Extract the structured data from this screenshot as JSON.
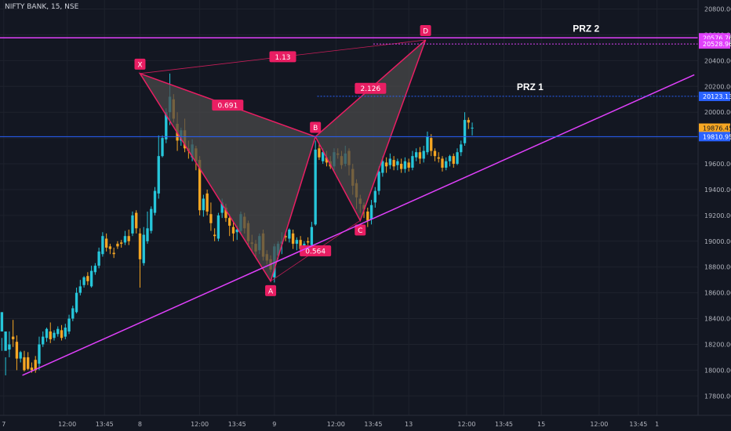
{
  "header": {
    "symbol": "NIFTY BANK",
    "interval": "15",
    "exchange": "NSE"
  },
  "colors": {
    "background": "#131722",
    "grid": "#1e222d",
    "axis_text": "#b2b5be",
    "bullish": "#26c6da",
    "bearish": "#f5a623",
    "pattern_fill": "#4a4a4a",
    "pattern_line": "#e91e63",
    "label_bg": "#e91e63",
    "trendline": "#e040fb",
    "prz2_line": "#e040fb",
    "prz1_line": "#2962ff",
    "level_blue": "#2962ff",
    "current_price": "#f5a623"
  },
  "chart_data": {
    "type": "candlestick",
    "y_axis": {
      "ylim": [
        17650,
        20870
      ],
      "ticks": [
        17800,
        18000,
        18200,
        18400,
        18600,
        18800,
        19000,
        19200,
        19400,
        19600,
        19800,
        20000,
        20200,
        20400,
        20600,
        20800
      ],
      "tick_labels": [
        "17800.00",
        "18000.00",
        "18200.00",
        "18400.00",
        "18600.00",
        "18800.00",
        "19000.00",
        "19200.00",
        "19400.00",
        "19600.00",
        "19800.00",
        "20000.00",
        "20200.00",
        "20400.00",
        "20600.00",
        "20800.00"
      ]
    },
    "x_axis": {
      "xlim": [
        0,
        187
      ],
      "tick_positions": [
        1,
        18,
        28,
        37.5,
        53.5,
        63.5,
        73.5,
        90,
        100,
        109.5,
        125,
        135,
        145,
        160.5,
        171,
        176
      ],
      "tick_labels": [
        "7",
        "12:00",
        "13:45",
        "8",
        "12:00",
        "13:45",
        "9",
        "12:00",
        "13:45",
        "13",
        "12:00",
        "13:45",
        "15",
        "12:00",
        "13:45",
        "1"
      ]
    },
    "candles": [
      [
        18300,
        18450,
        18250,
        18150
      ],
      [
        18150,
        18300,
        18100,
        17960
      ],
      [
        18160,
        18200,
        18300,
        18100
      ],
      [
        18260,
        18240,
        18390,
        18180
      ],
      [
        18220,
        18090,
        18270,
        18000
      ],
      [
        18090,
        18140,
        18150,
        18060
      ],
      [
        18100,
        18000,
        18150,
        17990
      ],
      [
        18100,
        18010,
        18140,
        18000
      ],
      [
        18020,
        18000,
        18060,
        17980
      ],
      [
        18080,
        18000,
        18110,
        17980
      ],
      [
        18050,
        18200,
        18260,
        18000
      ],
      [
        18200,
        18260,
        18300,
        18180
      ],
      [
        18250,
        18320,
        18330,
        18220
      ],
      [
        18300,
        18240,
        18370,
        18210
      ],
      [
        18250,
        18290,
        18310,
        18230
      ],
      [
        18280,
        18320,
        18340,
        18260
      ],
      [
        18310,
        18250,
        18350,
        18230
      ],
      [
        18260,
        18330,
        18360,
        18240
      ],
      [
        18300,
        18400,
        18430,
        18280
      ],
      [
        18400,
        18480,
        18500,
        18380
      ],
      [
        18450,
        18600,
        18640,
        18440
      ],
      [
        18600,
        18650,
        18700,
        18580
      ],
      [
        18660,
        18720,
        18730,
        18640
      ],
      [
        18730,
        18690,
        18760,
        18660
      ],
      [
        18650,
        18770,
        18810,
        18640
      ],
      [
        18760,
        18810,
        18830,
        18740
      ],
      [
        18810,
        18920,
        18950,
        18790
      ],
      [
        18900,
        19040,
        19070,
        18880
      ],
      [
        19020,
        18950,
        19060,
        18920
      ],
      [
        18960,
        18940,
        18980,
        18900
      ],
      [
        18910,
        18900,
        18950,
        18870
      ],
      [
        18980,
        18960,
        19000,
        18940
      ],
      [
        18990,
        18980,
        19010,
        18950
      ],
      [
        18990,
        19040,
        19080,
        18970
      ],
      [
        19040,
        19000,
        19090,
        18970
      ],
      [
        19060,
        19200,
        19230,
        19040
      ],
      [
        19220,
        19100,
        19240,
        19060
      ],
      [
        19060,
        18860,
        19100,
        18640
      ],
      [
        18830,
        19050,
        19110,
        18810
      ],
      [
        19000,
        19100,
        19230,
        18980
      ],
      [
        19080,
        19250,
        19270,
        19060
      ],
      [
        19220,
        19390,
        19420,
        19200
      ],
      [
        19370,
        19660,
        19820,
        19330
      ],
      [
        19660,
        19800,
        19820,
        19650
      ],
      [
        19790,
        20000,
        20030,
        19760
      ],
      [
        20000,
        20120,
        20300,
        19900
      ],
      [
        20100,
        19950,
        20140,
        19920
      ],
      [
        19910,
        19780,
        20000,
        19700
      ],
      [
        19780,
        19860,
        19880,
        19740
      ],
      [
        19860,
        19720,
        19950,
        19690
      ],
      [
        19720,
        19700,
        19780,
        19640
      ],
      [
        19650,
        19750,
        19790,
        19620
      ],
      [
        19720,
        19620,
        19740,
        19550
      ],
      [
        19630,
        19240,
        19660,
        19200
      ],
      [
        19240,
        19330,
        19360,
        19190
      ],
      [
        19370,
        19230,
        19400,
        19200
      ],
      [
        19210,
        19140,
        19300,
        19080
      ],
      [
        19050,
        19040,
        19100,
        19000
      ],
      [
        19020,
        19200,
        19220,
        19000
      ],
      [
        19220,
        19300,
        19330,
        19180
      ],
      [
        19260,
        19180,
        19290,
        19150
      ],
      [
        19180,
        19120,
        19210,
        19040
      ],
      [
        19110,
        19060,
        19150,
        19000
      ],
      [
        19070,
        19090,
        19120,
        19010
      ],
      [
        19080,
        19210,
        19230,
        19060
      ],
      [
        19190,
        19100,
        19220,
        19060
      ],
      [
        19140,
        19000,
        19160,
        18960
      ],
      [
        18990,
        18980,
        19050,
        18920
      ],
      [
        18980,
        18920,
        19010,
        18880
      ],
      [
        18930,
        19040,
        19060,
        18900
      ],
      [
        19060,
        18880,
        19090,
        18850
      ],
      [
        18900,
        18850,
        18930,
        18820
      ],
      [
        18860,
        18780,
        18890,
        18760
      ],
      [
        18720,
        18960,
        18980,
        18680
      ],
      [
        18890,
        18980,
        19000,
        18860
      ],
      [
        18980,
        19000,
        19070,
        18900
      ],
      [
        19040,
        19030,
        19080,
        19000
      ],
      [
        19020,
        19090,
        19100,
        18990
      ],
      [
        19060,
        18980,
        19090,
        18940
      ],
      [
        18980,
        19010,
        19030,
        18930
      ],
      [
        19010,
        18940,
        19040,
        18920
      ],
      [
        18930,
        18980,
        19000,
        18910
      ],
      [
        19000,
        18990,
        19030,
        18970
      ],
      [
        18970,
        19110,
        19150,
        18960
      ],
      [
        19130,
        19710,
        19780,
        19120
      ],
      [
        19720,
        19650,
        19760,
        19630
      ],
      [
        19620,
        19690,
        19720,
        19600
      ],
      [
        19650,
        19610,
        19700,
        19580
      ],
      [
        19620,
        19580,
        19660,
        19560
      ],
      [
        19580,
        19690,
        19720,
        19550
      ],
      [
        19680,
        19670,
        19720,
        19640
      ],
      [
        19660,
        19590,
        19700,
        19560
      ],
      [
        19600,
        19680,
        19740,
        19580
      ],
      [
        19700,
        19590,
        19720,
        19510
      ],
      [
        19560,
        19430,
        19600,
        19360
      ],
      [
        19450,
        19340,
        19480,
        19250
      ],
      [
        19330,
        19290,
        19360,
        19220
      ],
      [
        19280,
        19250,
        19300,
        19180
      ],
      [
        19230,
        19160,
        19260,
        19110
      ],
      [
        19170,
        19280,
        19320,
        19130
      ],
      [
        19300,
        19390,
        19420,
        19260
      ],
      [
        19390,
        19540,
        19580,
        19360
      ],
      [
        19530,
        19620,
        19660,
        19500
      ],
      [
        19610,
        19580,
        19650,
        19530
      ],
      [
        19590,
        19640,
        19680,
        19560
      ],
      [
        19630,
        19580,
        19660,
        19550
      ],
      [
        19590,
        19620,
        19640,
        19550
      ],
      [
        19600,
        19560,
        19640,
        19530
      ],
      [
        19560,
        19620,
        19650,
        19530
      ],
      [
        19610,
        19570,
        19640,
        19540
      ],
      [
        19570,
        19660,
        19700,
        19550
      ],
      [
        19650,
        19690,
        19720,
        19620
      ],
      [
        19690,
        19640,
        19730,
        19600
      ],
      [
        19640,
        19700,
        19740,
        19610
      ],
      [
        19690,
        19810,
        19850,
        19670
      ],
      [
        19800,
        19700,
        19830,
        19660
      ],
      [
        19700,
        19660,
        19720,
        19620
      ],
      [
        19650,
        19640,
        19690,
        19610
      ],
      [
        19640,
        19570,
        19660,
        19540
      ],
      [
        19570,
        19620,
        19650,
        19550
      ],
      [
        19620,
        19660,
        19670,
        19580
      ],
      [
        19660,
        19600,
        19680,
        19570
      ],
      [
        19600,
        19690,
        19720,
        19590
      ],
      [
        19690,
        19750,
        19780,
        19660
      ],
      [
        19760,
        19940,
        20000,
        19740
      ],
      [
        19940,
        19920,
        19960,
        19870
      ],
      [
        19880,
        19880,
        19920,
        19820
      ]
    ],
    "pattern": {
      "points": [
        {
          "name": "X",
          "x": 37.5,
          "y": 20300
        },
        {
          "name": "A",
          "x": 72.5,
          "y": 18690
        },
        {
          "name": "B",
          "x": 84.5,
          "y": 19810
        },
        {
          "name": "C",
          "x": 96.5,
          "y": 19160
        },
        {
          "name": "D",
          "x": 114,
          "y": 20560
        }
      ],
      "ratios": [
        {
          "text": "1.13",
          "from": "X",
          "to": "D"
        },
        {
          "text": "0.691",
          "from": "X",
          "to": "B"
        },
        {
          "text": "0.564",
          "from": "A",
          "to": "C"
        },
        {
          "text": "2.126",
          "from": "B",
          "to": "D"
        }
      ]
    },
    "trendline": {
      "from": {
        "x": 6,
        "y": 17960
      },
      "to": {
        "x": 186,
        "y": 20290
      }
    },
    "levels": [
      {
        "label": "20576.76",
        "value": 20576.76,
        "type": "prz2"
      },
      {
        "label": "20528.96",
        "value": 20528.96,
        "type": "prz2_dotted"
      },
      {
        "label": "20123.13",
        "value": 20123.13,
        "type": "prz1"
      },
      {
        "label": "19876.45",
        "value": 19876.45,
        "type": "current"
      },
      {
        "label": "19810.95",
        "value": 19810.95,
        "type": "level"
      }
    ],
    "zone_labels": [
      {
        "text": "PRZ 2",
        "value": 20576.76
      },
      {
        "text": "PRZ 1",
        "value": 20123.13
      }
    ]
  }
}
